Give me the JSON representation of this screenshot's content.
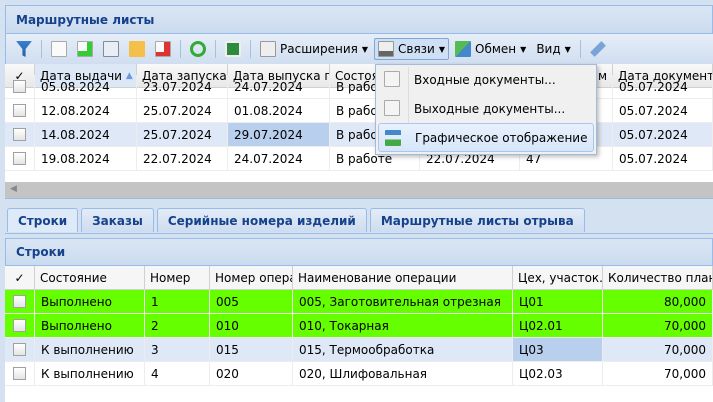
{
  "top_panel": {
    "title": "Маршрутные листы"
  },
  "toolbar": {
    "extensions": "Расширения",
    "links": "Связи",
    "exchange": "Обмен",
    "view": "Вид"
  },
  "links_menu": {
    "items": [
      "Входные документы...",
      "Выходные документы...",
      "Графическое отображение"
    ]
  },
  "top_grid": {
    "columns": [
      "Дата выдачи",
      "Дата запуска п",
      "Дата выпуска п",
      "Состоя",
      "",
      "м",
      "Дата документа"
    ],
    "rows": [
      [
        "05.08.2024",
        "23.07.2024",
        "24.07.2024",
        "В работе",
        "",
        "",
        "05.07.2024"
      ],
      [
        "12.08.2024",
        "25.07.2024",
        "01.08.2024",
        "В работе",
        "",
        "",
        "05.07.2024"
      ],
      [
        "14.08.2024",
        "25.07.2024",
        "29.07.2024",
        "В работе",
        "",
        "",
        "05.07.2024"
      ],
      [
        "19.08.2024",
        "22.07.2024",
        "24.07.2024",
        "В работе",
        "22.07.2024",
        "47",
        "05.07.2024"
      ]
    ]
  },
  "tabs": [
    "Строки",
    "Заказы",
    "Серийные номера изделий",
    "Маршрутные листы отрыва"
  ],
  "bottom_panel": {
    "title": "Строки"
  },
  "bottom_grid": {
    "columns": [
      "Состояние",
      "Номер",
      "Номер опера",
      "Наименование операции",
      "Цех, участок.",
      "Количество план"
    ],
    "rows": [
      [
        "Выполнено",
        "1",
        "005",
        "005, Заготовительная отрезная",
        "Ц01",
        "80,000"
      ],
      [
        "Выполнено",
        "2",
        "010",
        "010, Токарная",
        "Ц02.01",
        "70,000"
      ],
      [
        "К выполнению",
        "3",
        "015",
        "015, Термообработка",
        "Ц03",
        "70,000"
      ],
      [
        "К выполнению",
        "4",
        "020",
        "020, Шлифовальная",
        "Ц02.03",
        "70,000"
      ]
    ]
  },
  "colors": {
    "done_row": "#66ff00",
    "header_text": "#15428b",
    "selected_row": "#dfe8f6"
  }
}
